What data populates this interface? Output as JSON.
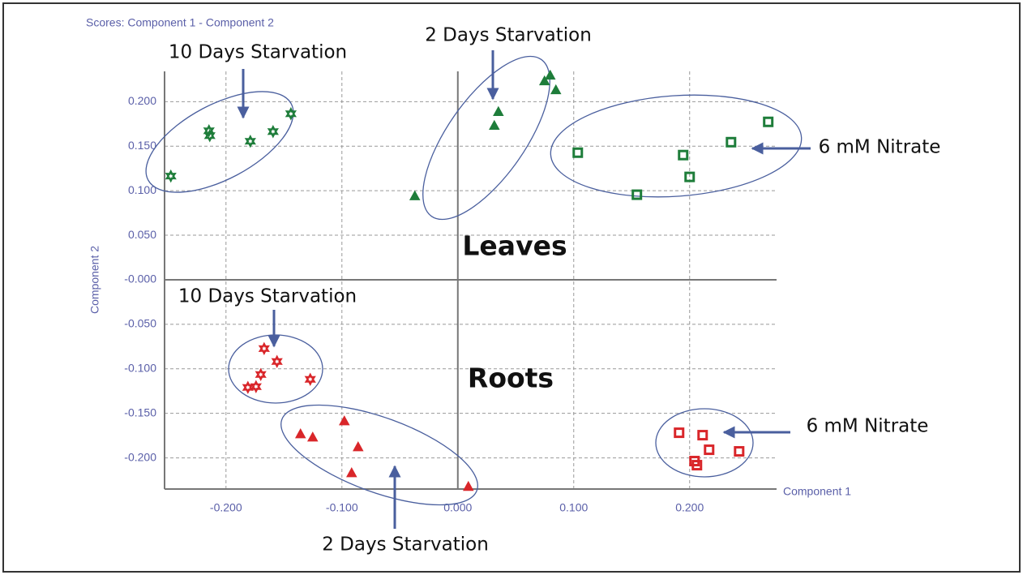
{
  "chart_data": {
    "type": "scatter",
    "title": "Scores: Component 1 - Component 2",
    "x_label": "Component 1",
    "y_label": "Component 2",
    "xlim": [
      -0.253,
      0.275
    ],
    "ylim": [
      -0.235,
      0.234
    ],
    "xticks": [
      {
        "value": -0.2,
        "label": "-0.200"
      },
      {
        "value": -0.1,
        "label": "-0.100"
      },
      {
        "value": 0,
        "label": "0.000"
      },
      {
        "value": 0.1,
        "label": "0.100"
      },
      {
        "value": 0.2,
        "label": "0.200"
      }
    ],
    "yticks": [
      {
        "value": 0.2,
        "label": "0.200"
      },
      {
        "value": 0.15,
        "label": "0.150"
      },
      {
        "value": 0.1,
        "label": "0.100"
      },
      {
        "value": 0.05,
        "label": "0.050"
      },
      {
        "value": 0,
        "label": "-0.000"
      },
      {
        "value": -0.05,
        "label": "-0.050"
      },
      {
        "value": -0.1,
        "label": "-0.100"
      },
      {
        "value": -0.15,
        "label": "-0.150"
      },
      {
        "value": -0.2,
        "label": "-0.200"
      }
    ],
    "grid": true,
    "series": [
      {
        "color": "#1e7d3a",
        "marker": "star",
        "x": [
          -0.2476,
          -0.2147,
          -0.214,
          -0.179,
          -0.1594,
          -0.144
        ],
        "y": [
          0.1164,
          0.1673,
          0.1618,
          0.1555,
          0.1664,
          0.1864
        ]
      },
      {
        "color": "#1e7d3a",
        "marker": "triangle",
        "x": [
          -0.0371,
          0.0315,
          0.035,
          0.0748,
          0.0797,
          0.0846
        ],
        "y": [
          0.0936,
          0.1727,
          0.1882,
          0.2227,
          0.2291,
          0.2127
        ]
      },
      {
        "color": "#1e7d3a",
        "marker": "square",
        "x": [
          0.1035,
          0.1545,
          0.1944,
          0.2,
          0.2357,
          0.2678
        ],
        "y": [
          0.1427,
          0.0955,
          0.14,
          0.1155,
          0.1545,
          0.1773
        ]
      },
      {
        "color": "#d9262a",
        "marker": "star",
        "x": [
          -0.1671,
          -0.156,
          -0.17,
          -0.1811,
          -0.1741,
          -0.1273
        ],
        "y": [
          -0.0773,
          -0.0918,
          -0.1064,
          -0.1209,
          -0.12,
          -0.1118
        ]
      },
      {
        "color": "#d9262a",
        "marker": "triangle",
        "x": [
          -0.1357,
          -0.1252,
          -0.0979,
          -0.086,
          -0.0916,
          0.0091
        ],
        "y": [
          -0.1736,
          -0.1773,
          -0.1591,
          -0.1882,
          -0.2173,
          -0.2327
        ]
      },
      {
        "color": "#d9262a",
        "marker": "square",
        "x": [
          0.1909,
          0.2112,
          0.2168,
          0.2042,
          0.2063,
          0.2427
        ],
        "y": [
          -0.1718,
          -0.1745,
          -0.1909,
          -0.2036,
          -0.2082,
          -0.1927
        ]
      }
    ],
    "annotations": [
      "10 Days Starvation",
      "2 Days Starvation",
      "6 mM Nitrate",
      "10 Days Starvation",
      "2 Days Starvation",
      "6 mM Nitrate",
      "Leaves",
      "Roots"
    ]
  }
}
